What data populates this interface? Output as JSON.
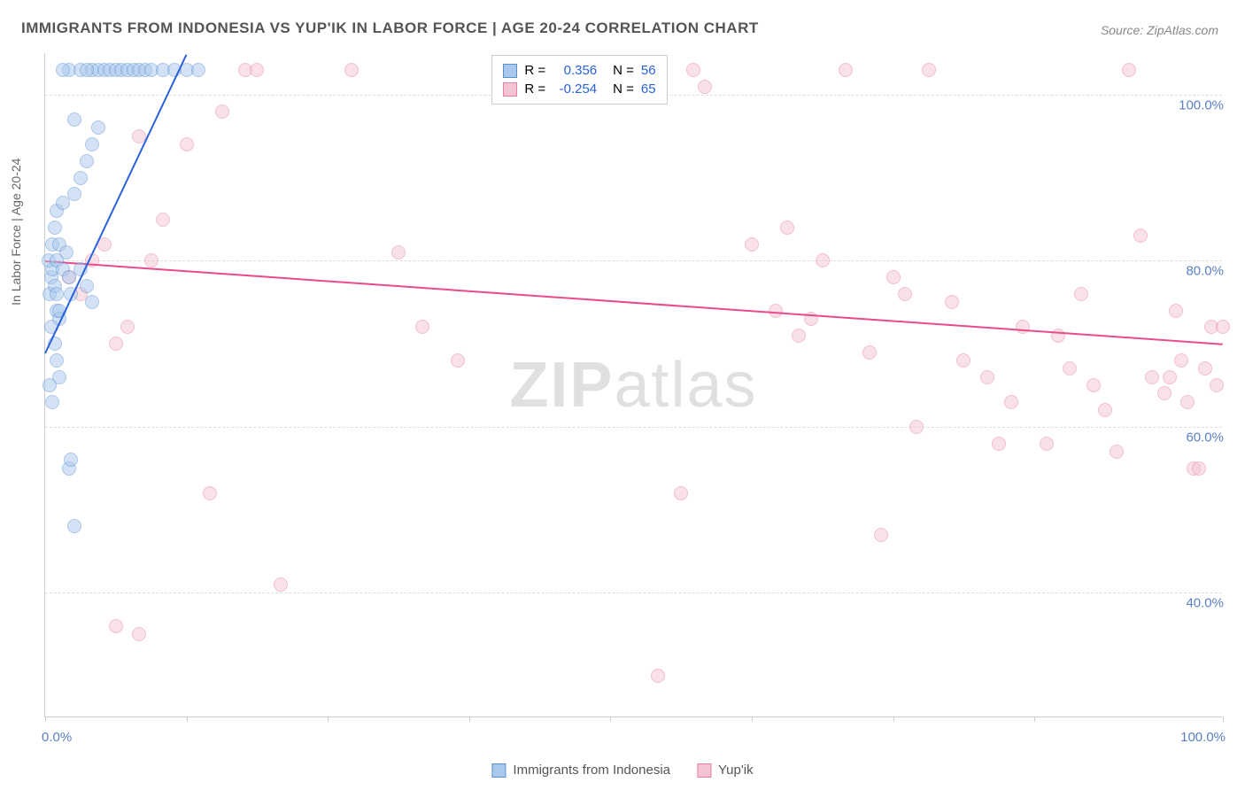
{
  "title": "IMMIGRANTS FROM INDONESIA VS YUP'IK IN LABOR FORCE | AGE 20-24 CORRELATION CHART",
  "source": "Source: ZipAtlas.com",
  "y_axis_label": "In Labor Force | Age 20-24",
  "watermark": {
    "part1": "ZIP",
    "part2": "atlas"
  },
  "chart": {
    "type": "scatter",
    "xlim": [
      0,
      100
    ],
    "ylim": [
      25,
      105
    ],
    "x_ticks": [
      0,
      12,
      24,
      36,
      48,
      60,
      72,
      84,
      100
    ],
    "x_tick_labels": {
      "0": "0.0%",
      "100": "100.0%"
    },
    "y_gridlines": [
      40,
      60,
      80,
      100
    ],
    "y_tick_labels": {
      "40": "40.0%",
      "60": "60.0%",
      "80": "80.0%",
      "100": "100.0%"
    },
    "point_radius": 8,
    "point_opacity": 0.5,
    "grid_color": "#dddddd",
    "axis_color": "#cccccc",
    "background_color": "#ffffff"
  },
  "series": {
    "indonesia": {
      "label": "Immigrants from Indonesia",
      "color_fill": "#a8c8ec",
      "color_stroke": "#5a8fd4",
      "r_value": "0.356",
      "n_value": "56",
      "trend": {
        "x1": 0,
        "y1": 69,
        "x2": 12,
        "y2": 105,
        "color": "#2962d9",
        "width": 2
      },
      "points": [
        [
          0.4,
          76
        ],
        [
          0.5,
          78
        ],
        [
          0.6,
          79
        ],
        [
          0.8,
          77
        ],
        [
          1.0,
          74
        ],
        [
          1.2,
          73
        ],
        [
          0.3,
          80
        ],
        [
          0.6,
          82
        ],
        [
          0.8,
          84
        ],
        [
          1.0,
          86
        ],
        [
          1.5,
          87
        ],
        [
          1.0,
          80
        ],
        [
          1.2,
          82
        ],
        [
          1.5,
          79
        ],
        [
          1.8,
          81
        ],
        [
          2.0,
          78
        ],
        [
          2.2,
          76
        ],
        [
          1.0,
          76
        ],
        [
          1.2,
          74
        ],
        [
          0.5,
          72
        ],
        [
          0.8,
          70
        ],
        [
          1.0,
          68
        ],
        [
          1.2,
          66
        ],
        [
          0.4,
          65
        ],
        [
          0.6,
          63
        ],
        [
          2.5,
          88
        ],
        [
          3.0,
          90
        ],
        [
          3.5,
          92
        ],
        [
          4.0,
          94
        ],
        [
          4.5,
          96
        ],
        [
          2.0,
          55
        ],
        [
          2.2,
          56
        ],
        [
          2.5,
          48
        ],
        [
          4.0,
          103
        ],
        [
          4.5,
          103
        ],
        [
          5.0,
          103
        ],
        [
          5.5,
          103
        ],
        [
          6.0,
          103
        ],
        [
          6.5,
          103
        ],
        [
          7.0,
          103
        ],
        [
          7.5,
          103
        ],
        [
          8.0,
          103
        ],
        [
          8.5,
          103
        ],
        [
          9.0,
          103
        ],
        [
          10.0,
          103
        ],
        [
          11.0,
          103
        ],
        [
          12.0,
          103
        ],
        [
          13.0,
          103
        ],
        [
          2.0,
          103
        ],
        [
          2.5,
          97
        ],
        [
          1.5,
          103
        ],
        [
          3.0,
          103
        ],
        [
          3.5,
          103
        ],
        [
          3.0,
          79
        ],
        [
          3.5,
          77
        ],
        [
          4.0,
          75
        ]
      ]
    },
    "yupik": {
      "label": "Yup'ik",
      "color_fill": "#f5c4d2",
      "color_stroke": "#e87fa5",
      "r_value": "-0.254",
      "n_value": "65",
      "trend": {
        "x1": 0,
        "y1": 80,
        "x2": 100,
        "y2": 70,
        "color": "#e84b8a",
        "width": 2
      },
      "points": [
        [
          2,
          78
        ],
        [
          3,
          76
        ],
        [
          4,
          80
        ],
        [
          5,
          82
        ],
        [
          6,
          70
        ],
        [
          7,
          72
        ],
        [
          8,
          95
        ],
        [
          9,
          80
        ],
        [
          10,
          85
        ],
        [
          12,
          94
        ],
        [
          15,
          98
        ],
        [
          14,
          52
        ],
        [
          17,
          103
        ],
        [
          18,
          103
        ],
        [
          20,
          41
        ],
        [
          6,
          36
        ],
        [
          8,
          35
        ],
        [
          26,
          103
        ],
        [
          30,
          81
        ],
        [
          32,
          72
        ],
        [
          35,
          68
        ],
        [
          52,
          30
        ],
        [
          54,
          52
        ],
        [
          55,
          103
        ],
        [
          56,
          101
        ],
        [
          60,
          82
        ],
        [
          62,
          74
        ],
        [
          63,
          84
        ],
        [
          64,
          71
        ],
        [
          65,
          73
        ],
        [
          66,
          80
        ],
        [
          68,
          103
        ],
        [
          70,
          69
        ],
        [
          71,
          47
        ],
        [
          72,
          78
        ],
        [
          73,
          76
        ],
        [
          74,
          60
        ],
        [
          75,
          103
        ],
        [
          77,
          75
        ],
        [
          78,
          68
        ],
        [
          80,
          66
        ],
        [
          81,
          58
        ],
        [
          82,
          63
        ],
        [
          83,
          72
        ],
        [
          85,
          58
        ],
        [
          86,
          71
        ],
        [
          87,
          67
        ],
        [
          88,
          76
        ],
        [
          89,
          65
        ],
        [
          90,
          62
        ],
        [
          91,
          57
        ],
        [
          92,
          103
        ],
        [
          93,
          83
        ],
        [
          94,
          66
        ],
        [
          95,
          64
        ],
        [
          95.5,
          66
        ],
        [
          96,
          74
        ],
        [
          96.5,
          68
        ],
        [
          97,
          63
        ],
        [
          97.5,
          55
        ],
        [
          98,
          55
        ],
        [
          98.5,
          67
        ],
        [
          99,
          72
        ],
        [
          99.5,
          65
        ],
        [
          100,
          72
        ]
      ]
    }
  },
  "legend": {
    "r_prefix": "R =",
    "n_prefix": "N ="
  }
}
